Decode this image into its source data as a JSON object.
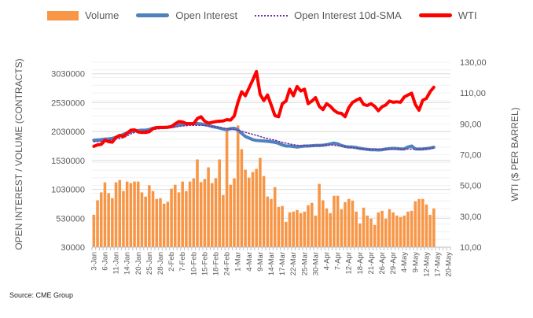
{
  "source": "Source: CME Group",
  "colors": {
    "volume": "#F79646",
    "open_interest": "#4F81BD",
    "sma": "#7030A0",
    "wti": "#FF0000",
    "grid": "#D9D9D9",
    "grid_minor": "#F0F0F0"
  },
  "chart_data": {
    "type": "bar+line",
    "title": "",
    "xlabel": "",
    "ylabel": "OPEN INTEREST / VOLUME (CONTRACTS)",
    "y2label": "WTI ($ PER BARREL)",
    "ylim": [
      30000,
      3230000
    ],
    "y2lim": [
      10,
      130
    ],
    "y_ticks": [
      "30000",
      "530000",
      "1030000",
      "1530000",
      "2030000",
      "2530000",
      "3030000"
    ],
    "y2_ticks": [
      "10,00",
      "30,00",
      "50,00",
      "70,00",
      "90,00",
      "110,00",
      "130,00"
    ],
    "grid": true,
    "legend_position": "top",
    "x_tick_labels": [
      "3-Jan",
      "6-Jan",
      "11-Jan",
      "14-Jan",
      "20-Jan",
      "25-Jan",
      "28-Jan",
      "2-Feb",
      "7-Feb",
      "10-Feb",
      "15-Feb",
      "18-Feb",
      "24-Feb",
      "1-Mar",
      "4-Mar",
      "9-Mar",
      "14-Mar",
      "17-Mar",
      "22-Mar",
      "25-Mar",
      "30-Mar",
      "4-Apr",
      "7-Apr",
      "12-Apr",
      "18-Apr",
      "21-Apr",
      "26-Apr",
      "29-Apr",
      "4-May",
      "9-May",
      "12-May",
      "17-May",
      "20-May"
    ],
    "series": [
      {
        "name": "Volume",
        "type": "bar",
        "axis": "left",
        "values": [
          590000,
          841000,
          978000,
          1151000,
          964000,
          878000,
          1151000,
          1192000,
          1000000,
          1165000,
          1138000,
          1165000,
          1165000,
          978000,
          905000,
          1101000,
          1000000,
          864000,
          878000,
          782000,
          814000,
          1042000,
          1110000,
          978000,
          1165000,
          1000000,
          1165000,
          1220000,
          1548000,
          1156000,
          1210000,
          1411000,
          1138000,
          1224000,
          1548000,
          932000,
          2058000,
          1110000,
          1220000,
          2136000,
          1725000,
          1370000,
          1233000,
          1329000,
          1384000,
          1575000,
          1260000,
          905000,
          864000,
          1069000,
          727000,
          741000,
          468000,
          632000,
          645000,
          673000,
          618000,
          645000,
          755000,
          796000,
          577000,
          1124000,
          841000,
          700000,
          618000,
          919000,
          919000,
          686000,
          809000,
          864000,
          837000,
          645000,
          440000,
          714000,
          577000,
          522000,
          413000,
          632000,
          659000,
          522000,
          686000,
          632000,
          577000,
          550000,
          577000,
          645000,
          659000,
          823000,
          864000,
          864000,
          768000,
          590000,
          700000
        ]
      },
      {
        "name": "Open Interest",
        "type": "line",
        "axis": "left",
        "values": [
          1881000,
          1885000,
          1890000,
          1899000,
          1903000,
          1912000,
          1931000,
          1953000,
          1981000,
          2008000,
          2026000,
          2045000,
          2049000,
          2054000,
          2054000,
          2067000,
          2086000,
          2100000,
          2104000,
          2104000,
          2104000,
          2113000,
          2126000,
          2145000,
          2154000,
          2163000,
          2168000,
          2168000,
          2168000,
          2163000,
          2149000,
          2136000,
          2117000,
          2104000,
          2090000,
          2072000,
          2063000,
          2081000,
          2086000,
          2058000,
          1999000,
          1944000,
          1917000,
          1890000,
          1876000,
          1872000,
          1867000,
          1862000,
          1853000,
          1844000,
          1826000,
          1799000,
          1780000,
          1780000,
          1771000,
          1762000,
          1771000,
          1780000,
          1780000,
          1785000,
          1789000,
          1789000,
          1794000,
          1803000,
          1817000,
          1830000,
          1817000,
          1789000,
          1771000,
          1762000,
          1762000,
          1753000,
          1739000,
          1730000,
          1721000,
          1716000,
          1716000,
          1712000,
          1716000,
          1726000,
          1735000,
          1739000,
          1735000,
          1730000,
          1730000,
          1762000,
          1780000,
          1730000,
          1726000,
          1730000,
          1735000,
          1744000,
          1758000
        ]
      },
      {
        "name": "Open Interest 10d-SMA",
        "type": "line",
        "style": "dotted",
        "axis": "left",
        "values": [
          1853000,
          1858000,
          1862000,
          1871000,
          1881000,
          1890000,
          1899000,
          1908000,
          1926000,
          1953000,
          1990000,
          2013000,
          2026000,
          2036000,
          2045000,
          2054000,
          2063000,
          2072000,
          2081000,
          2090000,
          2095000,
          2099000,
          2108000,
          2117000,
          2126000,
          2131000,
          2136000,
          2136000,
          2136000,
          2136000,
          2136000,
          2126000,
          2117000,
          2108000,
          2099000,
          2090000,
          2081000,
          2072000,
          2063000,
          2054000,
          2036000,
          2017000,
          1999000,
          1981000,
          1963000,
          1944000,
          1926000,
          1908000,
          1894000,
          1881000,
          1862000,
          1844000,
          1830000,
          1817000,
          1803000,
          1794000,
          1789000,
          1785000,
          1785000,
          1785000,
          1785000,
          1789000,
          1794000,
          1799000,
          1799000,
          1794000,
          1785000,
          1776000,
          1767000,
          1762000,
          1753000,
          1744000,
          1735000,
          1730000,
          1726000,
          1721000,
          1721000,
          1721000,
          1726000,
          1726000,
          1726000,
          1726000,
          1726000,
          1726000,
          1726000,
          1726000,
          1726000,
          1726000,
          1730000,
          1730000,
          1735000,
          1739000,
          1744000
        ]
      },
      {
        "name": "WTI",
        "type": "line",
        "axis": "right",
        "values": [
          75.4,
          76.4,
          76.7,
          79.3,
          78.4,
          78.1,
          81.3,
          82.5,
          81.8,
          83.9,
          85.9,
          86.1,
          84.7,
          84.4,
          84.4,
          84.9,
          86.9,
          87.6,
          87.6,
          87.6,
          87.8,
          88.3,
          90.0,
          91.5,
          91.2,
          90.2,
          90.0,
          90.0,
          93.4,
          94.6,
          91.7,
          90.5,
          91.0,
          91.5,
          91.7,
          91.9,
          92.7,
          92.4,
          95.1,
          104.0,
          110.8,
          108.2,
          113.3,
          118.4,
          124.0,
          109.1,
          105.1,
          108.7,
          102.2,
          95.4,
          94.6,
          103.1,
          104.8,
          112.5,
          108.2,
          114.2,
          111.3,
          112.5,
          103.1,
          104.8,
          107.0,
          101.4,
          99.2,
          103.1,
          101.4,
          98.8,
          97.1,
          96.8,
          94.6,
          100.5,
          103.9,
          105.3,
          106.5,
          102.6,
          101.9,
          103.1,
          101.4,
          98.5,
          101.1,
          102.2,
          104.8,
          104.0,
          104.3,
          104.0,
          107.4,
          108.7,
          109.9,
          102.6,
          98.8,
          105.3,
          106.5,
          110.8,
          113.7
        ]
      }
    ]
  }
}
